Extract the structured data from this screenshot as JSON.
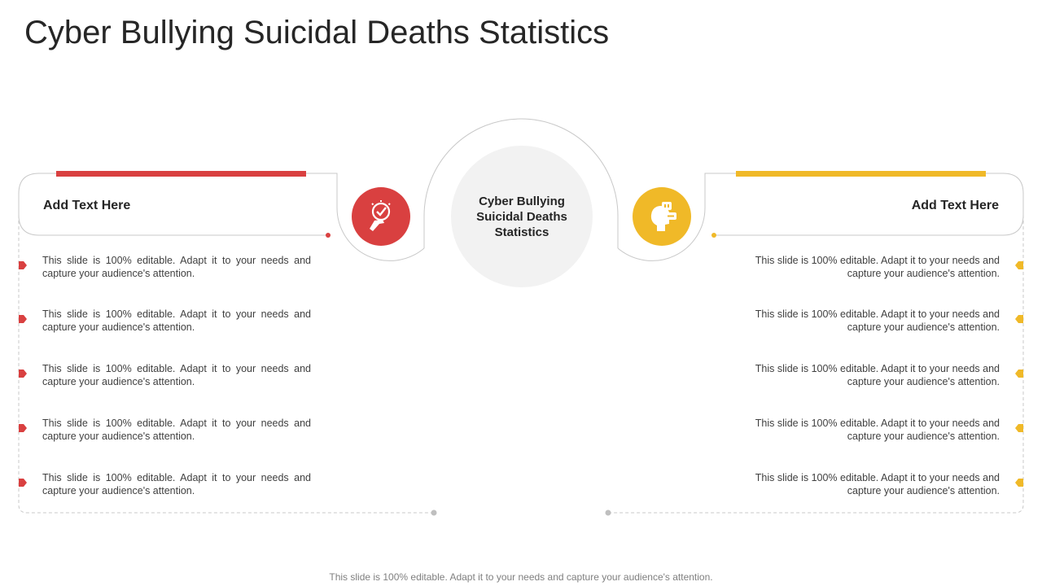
{
  "title": "Cyber Bullying Suicidal Deaths Statistics",
  "center": {
    "text": "Cyber Bullying Suicidal Deaths Statistics"
  },
  "left": {
    "heading": "Add Text Here",
    "accent_color": "#d94040",
    "icon": "lightbulb-hand-icon",
    "items": [
      "This slide is 100% editable. Adapt it to your needs and capture your audience's attention.",
      "This slide is 100% editable. Adapt it to your needs and capture your audience's attention.",
      "This slide is 100% editable. Adapt it to your needs and capture your audience's attention.",
      "This slide is 100% editable. Adapt it to your needs and capture your audience's attention.",
      "This slide is 100% editable. Adapt it to your needs and capture your audience's attention."
    ]
  },
  "right": {
    "heading": "Add Text Here",
    "accent_color": "#f0b928",
    "icon": "head-chat-icon",
    "items": [
      "This slide is 100% editable. Adapt it to your needs and capture your audience's attention.",
      "This slide is 100% editable. Adapt it to your needs and capture your audience's attention.",
      "This slide is 100% editable. Adapt it to your needs and capture your audience's attention.",
      "This slide is 100% editable. Adapt it to your needs and capture your audience's attention.",
      "This slide is 100% editable. Adapt it to your needs and capture your audience's attention."
    ]
  },
  "footer": "This slide is 100% editable. Adapt it to your needs and capture your audience's attention."
}
